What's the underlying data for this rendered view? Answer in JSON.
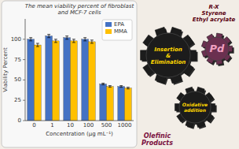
{
  "chart_data": {
    "type": "bar",
    "title": "The mean viability percent of fibroblast\nand MCF-7 cells",
    "x_label": "Concentration (µg mL⁻¹)",
    "y_label": "Viability Percent",
    "categories": [
      "0",
      "1",
      "10",
      "100",
      "500",
      "1000"
    ],
    "series": [
      {
        "name": "EPA",
        "color": "#4472c4",
        "values": [
          100,
          104,
          102,
          100,
          45,
          42
        ],
        "errors": [
          2,
          2,
          2,
          2,
          1,
          1
        ]
      },
      {
        "name": "MMA",
        "color": "#ffc000",
        "values": [
          93,
          98,
          98,
          97,
          42,
          40
        ],
        "errors": [
          2,
          2,
          2,
          2,
          1,
          1
        ]
      }
    ],
    "ylim": [
      0,
      125
    ],
    "yticks": [
      0,
      25,
      50,
      75,
      100
    ],
    "grid": false,
    "legend": "upper right",
    "annotations": [
      "Insertion\n&\nElimination",
      "Oxidative\naddition",
      "Pd",
      "R-X\nStyrene\nEthyl acrylate",
      "Olefinic\nProducts"
    ]
  }
}
